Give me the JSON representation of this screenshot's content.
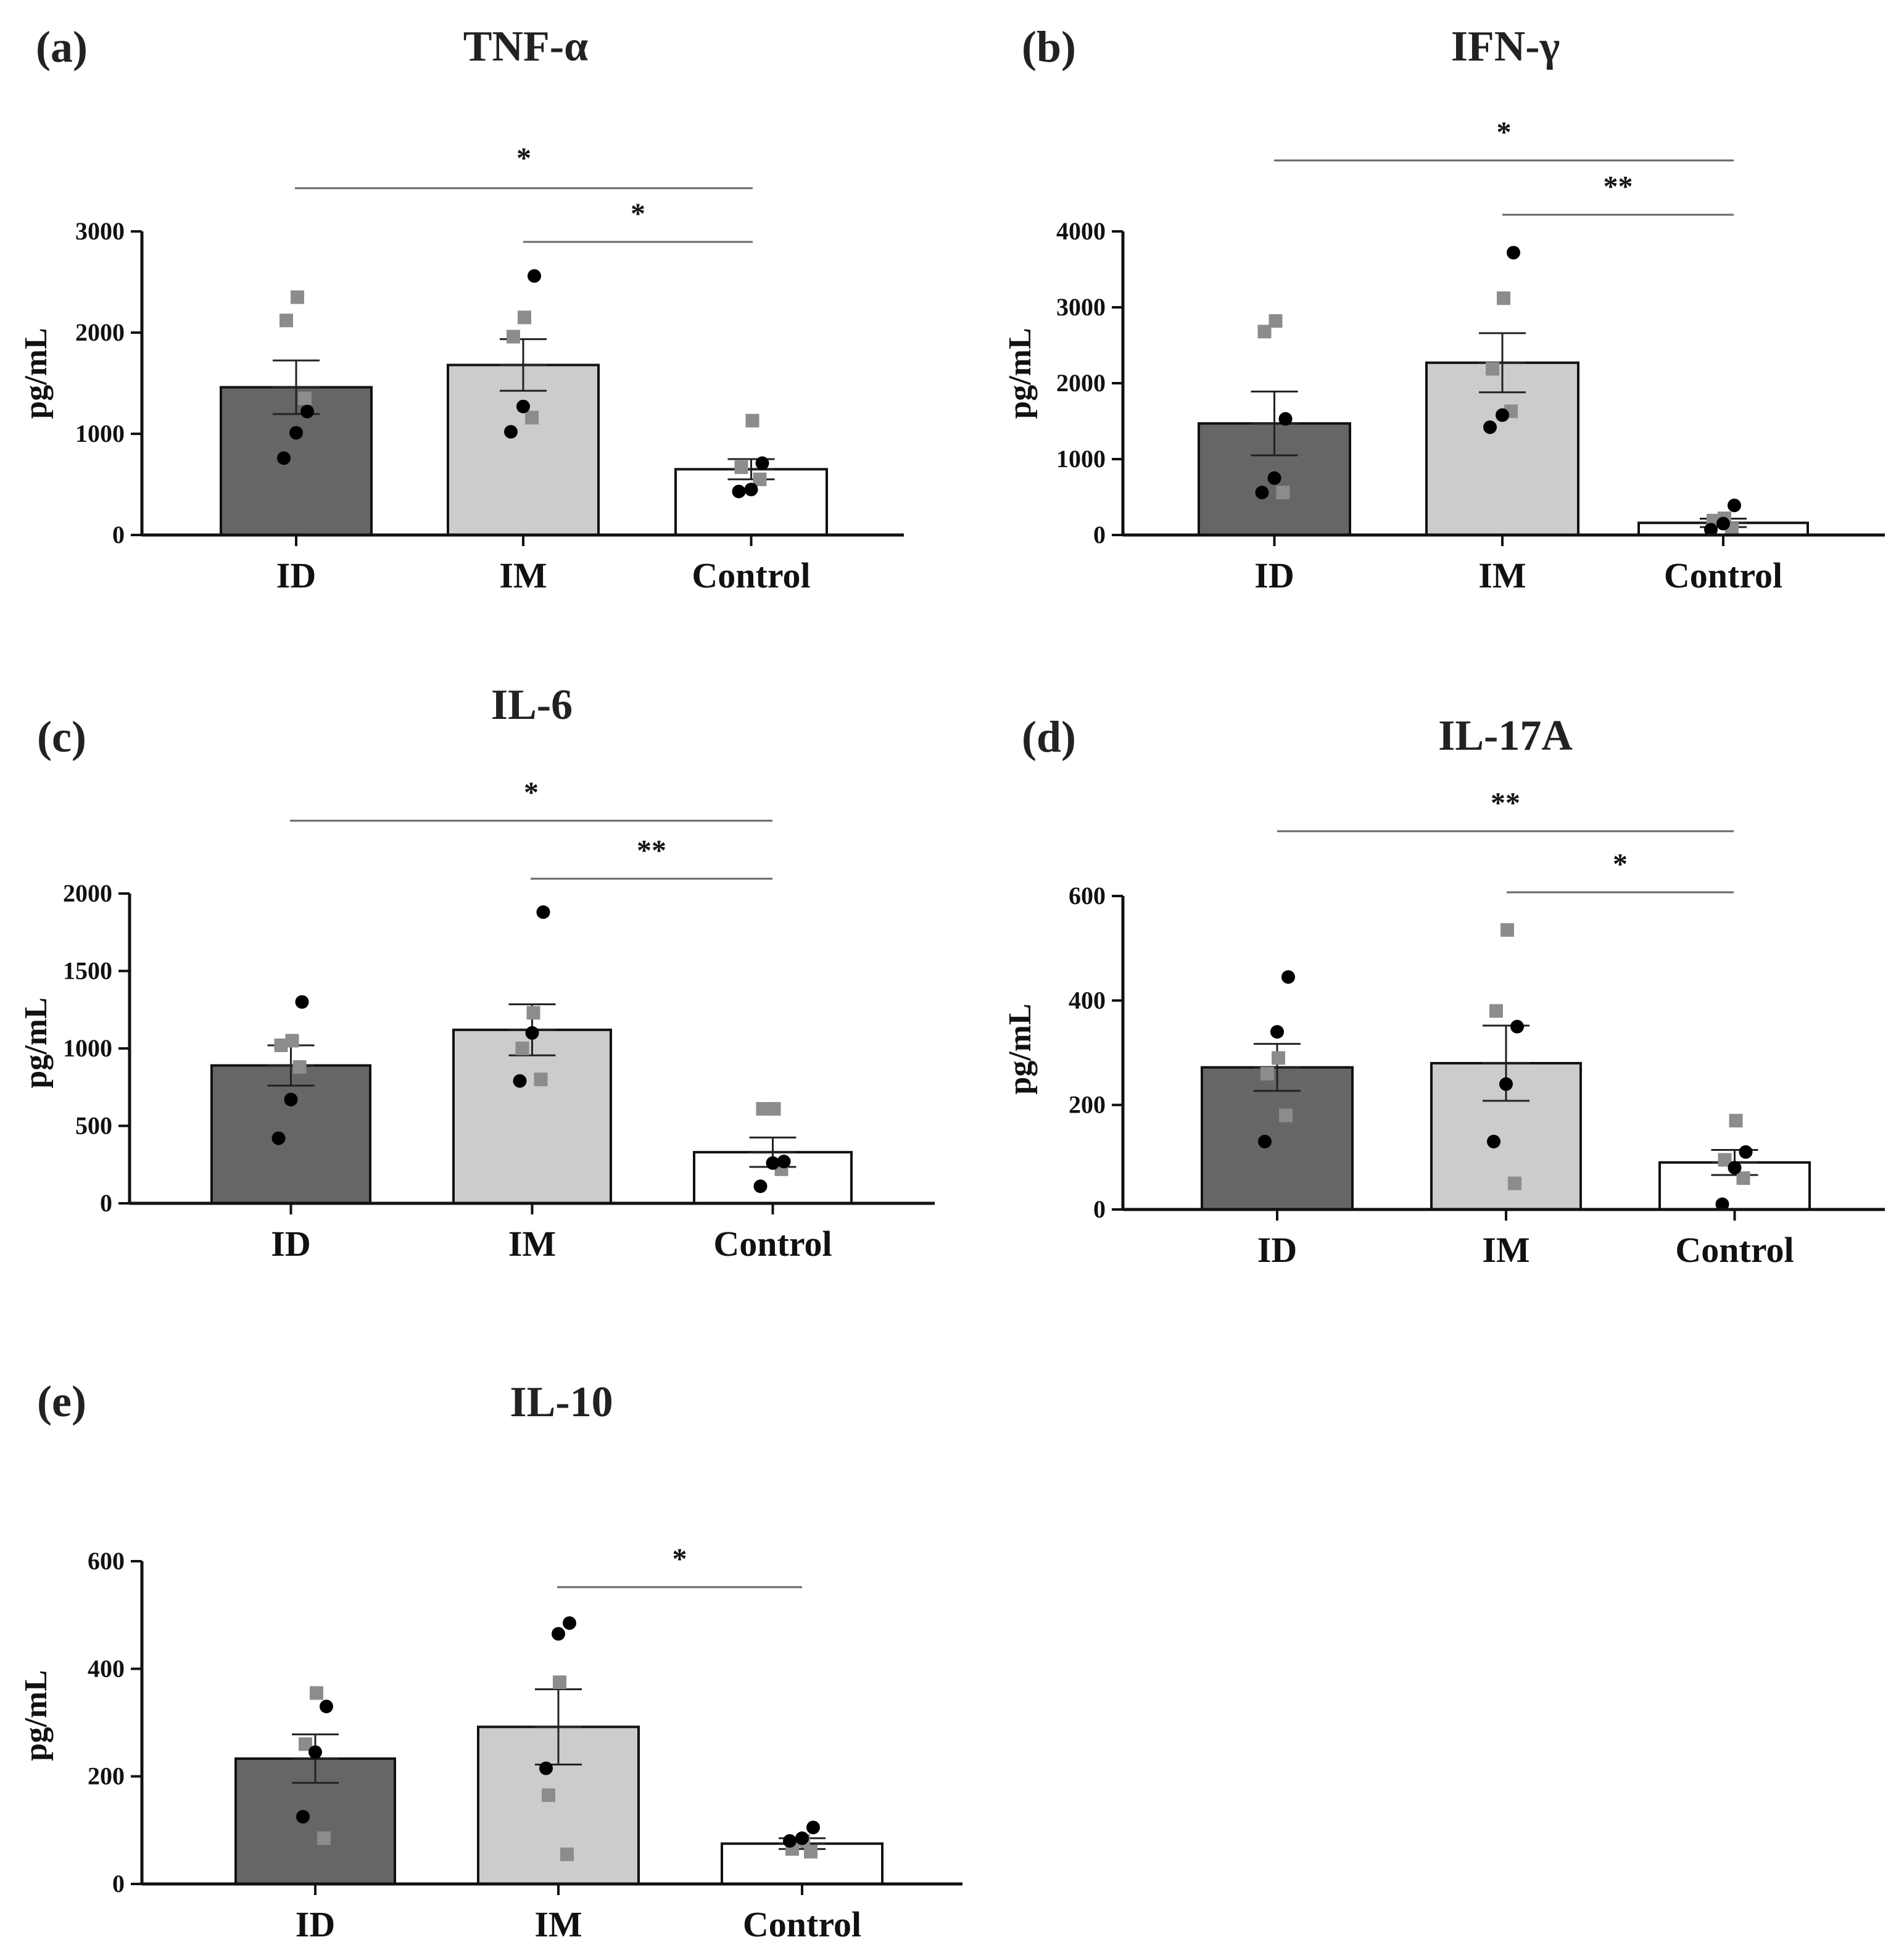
{
  "chart_data": [
    {
      "panel": "(a)",
      "type": "bar",
      "title": "TNF-α",
      "ylabel": "pg/mL",
      "categories": [
        "ID",
        "IM",
        "Control"
      ],
      "values": [
        1460,
        1680,
        650
      ],
      "sem": [
        265,
        255,
        100
      ],
      "ylim": [
        0,
        3000
      ],
      "yticks": [
        0,
        1000,
        2000,
        3000
      ],
      "bar_colors": [
        "#666666",
        "#cccccc",
        "#ffffff"
      ],
      "points": [
        {
          "black": [
            760,
            1010,
            1220
          ],
          "gray": [
            1350,
            2120,
            2350
          ]
        },
        {
          "black": [
            1020,
            1270,
            2560
          ],
          "gray": [
            1160,
            1960,
            2150
          ]
        },
        {
          "black": [
            430,
            450,
            710
          ],
          "gray": [
            550,
            670,
            1130
          ]
        }
      ],
      "significance": [
        {
          "from": "ID",
          "to": "Control",
          "label": "*"
        },
        {
          "from": "IM",
          "to": "Control",
          "label": "*"
        }
      ]
    },
    {
      "panel": "(b)",
      "type": "bar",
      "title": "IFN-γ",
      "ylabel": "pg/mL",
      "categories": [
        "ID",
        "IM",
        "Control"
      ],
      "values": [
        1470,
        2270,
        160
      ],
      "sem": [
        420,
        390,
        55
      ],
      "ylim": [
        0,
        4000
      ],
      "yticks": [
        0,
        1000,
        2000,
        3000,
        4000
      ],
      "bar_colors": [
        "#666666",
        "#cccccc",
        "#ffffff"
      ],
      "points": [
        {
          "black": [
            560,
            750,
            1530
          ],
          "gray": [
            560,
            2680,
            2820
          ]
        },
        {
          "black": [
            1420,
            1580,
            3720
          ],
          "gray": [
            1630,
            2190,
            3120
          ]
        },
        {
          "black": [
            70,
            150,
            390
          ],
          "gray": [
            80,
            190,
            220
          ]
        }
      ],
      "significance": [
        {
          "from": "ID",
          "to": "Control",
          "label": "*"
        },
        {
          "from": "IM",
          "to": "Control",
          "label": "**"
        }
      ]
    },
    {
      "panel": "(c)",
      "type": "bar",
      "title": "IL-6",
      "ylabel": "pg/mL",
      "categories": [
        "ID",
        "IM",
        "Control"
      ],
      "values": [
        890,
        1120,
        330
      ],
      "sem": [
        130,
        165,
        95
      ],
      "ylim": [
        0,
        2000
      ],
      "yticks": [
        0,
        500,
        1000,
        1500,
        2000
      ],
      "bar_colors": [
        "#666666",
        "#cccccc",
        "#ffffff"
      ],
      "points": [
        {
          "black": [
            420,
            670,
            1300
          ],
          "gray": [
            880,
            1020,
            1050
          ]
        },
        {
          "black": [
            790,
            1100,
            1880
          ],
          "gray": [
            800,
            1000,
            1230
          ]
        },
        {
          "black": [
            110,
            260,
            270
          ],
          "gray": [
            220,
            610,
            610
          ]
        }
      ],
      "significance": [
        {
          "from": "ID",
          "to": "Control",
          "label": "*"
        },
        {
          "from": "IM",
          "to": "Control",
          "label": "**"
        }
      ]
    },
    {
      "panel": "(d)",
      "type": "bar",
      "title": "IL-17A",
      "ylabel": "pg/mL",
      "categories": [
        "ID",
        "IM",
        "Control"
      ],
      "values": [
        272,
        280,
        90
      ],
      "sem": [
        45,
        72,
        24
      ],
      "ylim": [
        0,
        600
      ],
      "yticks": [
        0,
        200,
        400,
        600
      ],
      "bar_colors": [
        "#666666",
        "#cccccc",
        "#ffffff"
      ],
      "points": [
        {
          "black": [
            130,
            340,
            445
          ],
          "gray": [
            180,
            260,
            290
          ]
        },
        {
          "black": [
            130,
            240,
            350
          ],
          "gray": [
            50,
            380,
            535
          ]
        },
        {
          "black": [
            10,
            80,
            110
          ],
          "gray": [
            60,
            95,
            170
          ]
        }
      ],
      "significance": [
        {
          "from": "ID",
          "to": "Control",
          "label": "**"
        },
        {
          "from": "IM",
          "to": "Control",
          "label": "*"
        }
      ]
    },
    {
      "panel": "(e)",
      "type": "bar",
      "title": "IL-10",
      "ylabel": "pg/mL",
      "categories": [
        "ID",
        "IM",
        "Control"
      ],
      "values": [
        233,
        292,
        75
      ],
      "sem": [
        45,
        70,
        10
      ],
      "ylim": [
        0,
        600
      ],
      "yticks": [
        0,
        200,
        400,
        600
      ],
      "bar_colors": [
        "#666666",
        "#cccccc",
        "#ffffff"
      ],
      "points": [
        {
          "black": [
            125,
            245,
            330
          ],
          "gray": [
            85,
            260,
            355
          ]
        },
        {
          "black": [
            215,
            465,
            485
          ],
          "gray": [
            55,
            165,
            375
          ]
        },
        {
          "black": [
            80,
            85,
            105
          ],
          "gray": [
            60,
            65,
            80
          ]
        }
      ],
      "significance": [
        {
          "from": "IM",
          "to": "Control",
          "label": "*"
        }
      ]
    }
  ]
}
